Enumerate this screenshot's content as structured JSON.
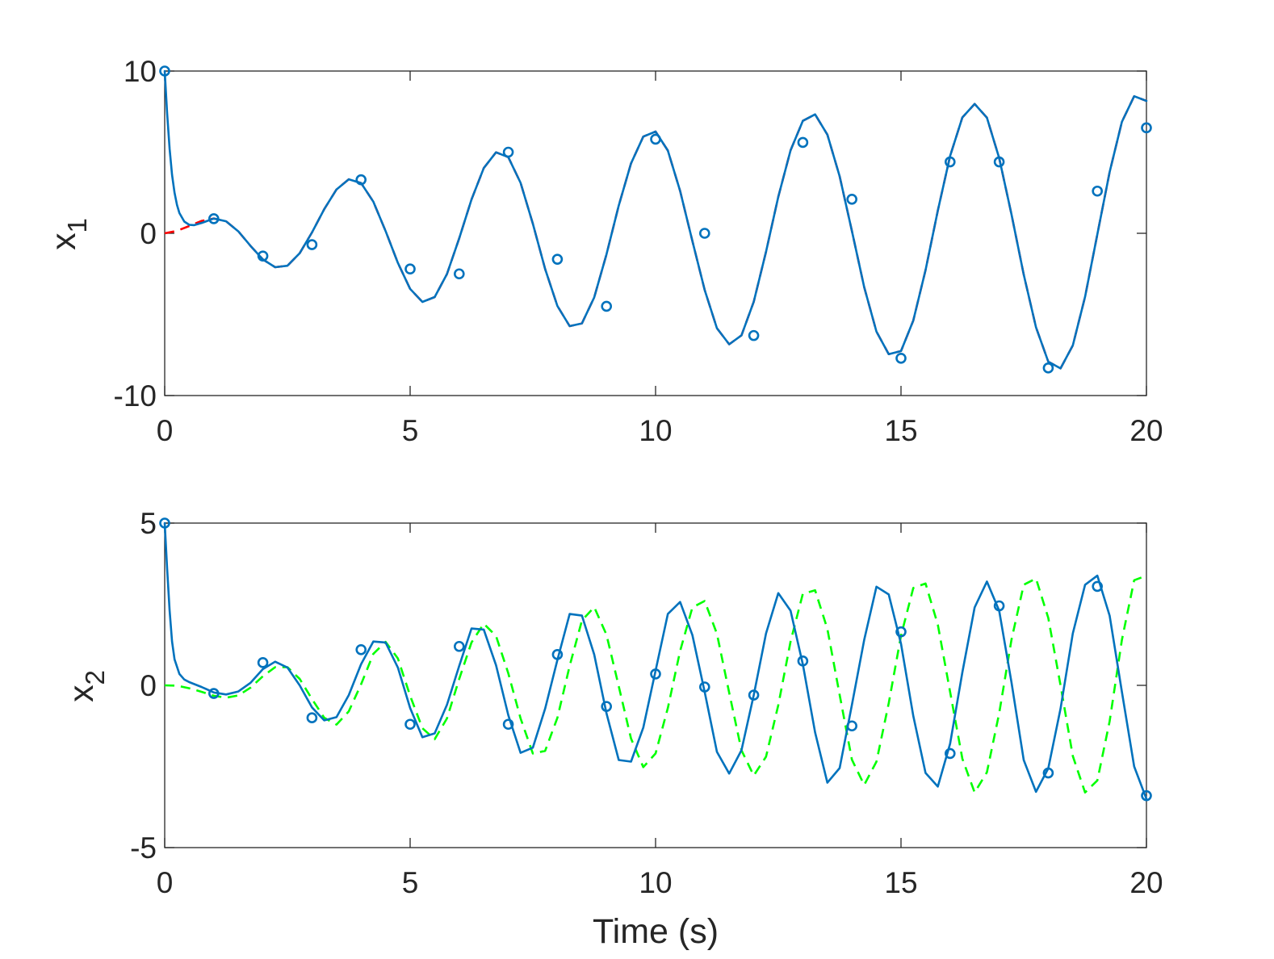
{
  "chart_data": [
    {
      "type": "line",
      "xlabel": "",
      "ylabel": "x",
      "ylabel_subscript": "1",
      "xlim": [
        0,
        20
      ],
      "ylim": [
        -10,
        10
      ],
      "xticks": [
        0,
        5,
        10,
        15,
        20
      ],
      "yticks": [
        -10,
        0,
        10
      ],
      "xtick_labels": [
        "0",
        "5",
        "10",
        "15",
        "20"
      ],
      "ytick_labels": [
        "-10",
        "0",
        "10"
      ],
      "grid": false,
      "colors": {
        "reference": "#ff0000",
        "estimate": "#0072bd",
        "markers": "#0072bd"
      },
      "series": [
        {
          "style": "dashed",
          "color": "#ff0000",
          "x": [
            0,
            0.25,
            0.5,
            0.75,
            1.0,
            1.25,
            1.5,
            1.75,
            2.0,
            2.25,
            2.5,
            2.75,
            3.0,
            3.25,
            3.5,
            3.75,
            4.0,
            4.25,
            4.5,
            4.75,
            5.0,
            5.25,
            5.5,
            5.75,
            6.0,
            6.25,
            6.5,
            6.75,
            7.0,
            7.25,
            7.5,
            7.75,
            8.0,
            8.25,
            8.5,
            8.75,
            9.0,
            9.25,
            9.5,
            9.75,
            10.0,
            10.25,
            10.5,
            10.75,
            11.0,
            11.25,
            11.5,
            11.75,
            12.0,
            12.25,
            12.5,
            12.75,
            13.0,
            13.25,
            13.5,
            13.75,
            14.0,
            14.25,
            14.5,
            14.75,
            15.0,
            15.25,
            15.5,
            15.75,
            16.0,
            16.25,
            16.5,
            16.75,
            17.0,
            17.25,
            17.5,
            17.75,
            18.0,
            18.25,
            18.5,
            18.75,
            19.0,
            19.25,
            19.5,
            19.75,
            20.0
          ],
          "y": [
            0.0,
            0.15,
            0.45,
            0.76,
            0.91,
            0.74,
            0.12,
            -0.78,
            -1.61,
            -2.09,
            -2.0,
            -1.23,
            0.05,
            1.49,
            2.7,
            3.33,
            3.1,
            1.95,
            0.14,
            -1.82,
            -3.43,
            -4.23,
            -3.93,
            -2.51,
            -0.31,
            2.08,
            4.02,
            4.99,
            4.69,
            3.11,
            0.59,
            -2.2,
            -4.48,
            -5.72,
            -5.55,
            -3.95,
            -1.3,
            1.71,
            4.31,
            5.96,
            6.27,
            5.1,
            2.61,
            -0.48,
            -3.49,
            -5.85,
            -6.84,
            -6.29,
            -4.22,
            -1.14,
            2.25,
            5.11,
            6.93,
            7.33,
            6.08,
            3.51,
            0.14,
            -3.32,
            -6.06,
            -7.45,
            -7.26,
            -5.38,
            -2.27,
            1.4,
            4.76,
            7.14,
            7.97,
            7.13,
            4.64,
            1.18,
            -2.54,
            -5.79,
            -7.91,
            -8.33,
            -6.91,
            -3.91,
            -0.06,
            3.77,
            6.87,
            8.45,
            8.16
          ]
        },
        {
          "style": "solid",
          "color": "#0072bd",
          "x": [
            0,
            0.05,
            0.1,
            0.15,
            0.2,
            0.25,
            0.3,
            0.4,
            0.5,
            0.6,
            0.75,
            1.0,
            1.25,
            1.5,
            1.75,
            2.0,
            2.25,
            2.5,
            2.75,
            3.0,
            3.25,
            3.5,
            3.75,
            4.0,
            4.25,
            4.5,
            4.75,
            5.0,
            5.25,
            5.5,
            5.75,
            6.0,
            6.25,
            6.5,
            6.75,
            7.0,
            7.25,
            7.5,
            7.75,
            8.0,
            8.25,
            8.5,
            8.75,
            9.0,
            9.25,
            9.5,
            9.75,
            10.0,
            10.25,
            10.5,
            10.75,
            11.0,
            11.25,
            11.5,
            11.75,
            12.0,
            12.25,
            12.5,
            12.75,
            13.0,
            13.25,
            13.5,
            13.75,
            14.0,
            14.25,
            14.5,
            14.75,
            15.0,
            15.25,
            15.5,
            15.75,
            16.0,
            16.25,
            16.5,
            16.75,
            17.0,
            17.25,
            17.5,
            17.75,
            18.0,
            18.25,
            18.5,
            18.75,
            19.0,
            19.25,
            19.5,
            19.75,
            20.0
          ],
          "y": [
            10.0,
            7.4,
            5.2,
            3.6,
            2.5,
            1.75,
            1.25,
            0.72,
            0.52,
            0.5,
            0.63,
            0.91,
            0.74,
            0.12,
            -0.78,
            -1.61,
            -2.09,
            -2.0,
            -1.23,
            0.05,
            1.49,
            2.7,
            3.33,
            3.1,
            1.95,
            0.14,
            -1.82,
            -3.43,
            -4.23,
            -3.93,
            -2.51,
            -0.31,
            2.08,
            4.02,
            4.99,
            4.69,
            3.11,
            0.59,
            -2.2,
            -4.48,
            -5.72,
            -5.55,
            -3.95,
            -1.3,
            1.71,
            4.31,
            5.96,
            6.27,
            5.1,
            2.61,
            -0.48,
            -3.49,
            -5.85,
            -6.84,
            -6.29,
            -4.22,
            -1.14,
            2.25,
            5.11,
            6.93,
            7.33,
            6.08,
            3.51,
            0.14,
            -3.32,
            -6.06,
            -7.45,
            -7.26,
            -5.38,
            -2.27,
            1.4,
            4.76,
            7.14,
            7.97,
            7.13,
            4.64,
            1.18,
            -2.54,
            -5.79,
            -7.91,
            -8.33,
            -6.91,
            -3.91,
            -0.06,
            3.77,
            6.87,
            8.45,
            8.16
          ]
        },
        {
          "style": "markers",
          "marker": "circle",
          "color": "#0072bd",
          "x": [
            0,
            1,
            2,
            3,
            4,
            5,
            6,
            7,
            8,
            9,
            10,
            11,
            12,
            13,
            14,
            15,
            16,
            17,
            18,
            19,
            20
          ],
          "y": [
            10.0,
            0.9,
            -1.4,
            -0.7,
            3.3,
            -2.2,
            -2.5,
            5.0,
            -1.6,
            -4.5,
            5.8,
            0.0,
            -6.3,
            5.6,
            2.1,
            -7.7,
            4.4,
            4.4,
            -8.3,
            2.6,
            6.5
          ]
        }
      ]
    },
    {
      "type": "line",
      "xlabel": "Time (s)",
      "ylabel": "x",
      "ylabel_subscript": "2",
      "xlim": [
        0,
        20
      ],
      "ylim": [
        -5,
        5
      ],
      "xticks": [
        0,
        5,
        10,
        15,
        20
      ],
      "yticks": [
        -5,
        0,
        5
      ],
      "xtick_labels": [
        "0",
        "5",
        "10",
        "15",
        "20"
      ],
      "ytick_labels": [
        "-5",
        "0",
        "5"
      ],
      "grid": false,
      "colors": {
        "reference": "#00ff00",
        "estimate": "#0072bd",
        "markers": "#0072bd"
      },
      "series": [
        {
          "style": "dashed",
          "color": "#00ff00",
          "x": [
            0,
            0.25,
            0.5,
            0.75,
            1.0,
            1.25,
            1.5,
            1.75,
            2.0,
            2.25,
            2.5,
            2.75,
            3.0,
            3.25,
            3.5,
            3.75,
            4.0,
            4.25,
            4.5,
            4.75,
            5.0,
            5.25,
            5.5,
            5.75,
            6.0,
            6.25,
            6.5,
            6.75,
            7.0,
            7.25,
            7.5,
            7.75,
            8.0,
            8.25,
            8.5,
            8.75,
            9.0,
            9.25,
            9.5,
            9.75,
            10.0,
            10.25,
            10.5,
            10.75,
            11.0,
            11.25,
            11.5,
            11.75,
            12.0,
            12.25,
            12.5,
            12.75,
            13.0,
            13.25,
            13.5,
            13.75,
            14.0,
            14.25,
            14.5,
            14.75,
            15.0,
            15.25,
            15.5,
            15.75,
            16.0,
            16.25,
            16.5,
            16.75,
            17.0,
            17.25,
            17.5,
            17.75,
            18.0,
            18.25,
            18.5,
            18.75,
            19.0,
            19.25,
            19.5,
            19.75,
            20.0
          ],
          "y": [
            0.0,
            -0.01,
            -0.09,
            -0.2,
            -0.32,
            -0.38,
            -0.31,
            -0.07,
            0.28,
            0.56,
            0.56,
            0.2,
            -0.42,
            -1.0,
            -1.21,
            -0.8,
            0.03,
            0.97,
            1.34,
            0.83,
            -0.32,
            -1.32,
            -1.66,
            -1.02,
            0.2,
            1.32,
            1.9,
            1.52,
            0.37,
            -1.02,
            -2.1,
            -2.02,
            -1.0,
            0.6,
            2.0,
            2.41,
            1.56,
            -0.03,
            -1.64,
            -2.52,
            -2.1,
            -0.7,
            1.06,
            2.4,
            2.6,
            1.59,
            -0.23,
            -2.0,
            -2.78,
            -2.2,
            -0.61,
            1.35,
            2.82,
            2.93,
            1.74,
            -0.29,
            -2.29,
            -3.07,
            -2.35,
            -0.55,
            1.53,
            3.0,
            3.14,
            1.87,
            -0.2,
            -2.26,
            -3.3,
            -2.68,
            -0.86,
            1.4,
            3.1,
            3.29,
            2.08,
            0.0,
            -2.18,
            -3.3,
            -2.93,
            -1.11,
            1.4,
            3.24,
            3.38
          ]
        },
        {
          "style": "solid",
          "color": "#0072bd",
          "x": [
            0,
            0.05,
            0.1,
            0.15,
            0.2,
            0.3,
            0.4,
            0.5,
            0.75,
            1.0,
            1.25,
            1.5,
            1.75,
            2.0,
            2.25,
            2.5,
            2.75,
            3.0,
            3.25,
            3.5,
            3.75,
            4.0,
            4.25,
            4.5,
            4.75,
            5.0,
            5.25,
            5.5,
            5.75,
            6.0,
            6.25,
            6.5,
            6.75,
            7.0,
            7.25,
            7.5,
            7.75,
            8.0,
            8.25,
            8.5,
            8.75,
            9.0,
            9.25,
            9.5,
            9.75,
            10.0,
            10.25,
            10.5,
            10.75,
            11.0,
            11.25,
            11.5,
            11.75,
            12.0,
            12.25,
            12.5,
            12.75,
            13.0,
            13.25,
            13.5,
            13.75,
            14.0,
            14.25,
            14.5,
            14.75,
            15.0,
            15.25,
            15.5,
            15.75,
            16.0,
            16.25,
            16.5,
            16.75,
            17.0,
            17.25,
            17.5,
            17.75,
            18.0,
            18.25,
            18.5,
            18.75,
            19.0,
            19.25,
            19.5,
            19.75,
            20.0
          ],
          "y": [
            5.0,
            3.6,
            2.3,
            1.35,
            0.8,
            0.35,
            0.18,
            0.1,
            -0.05,
            -0.22,
            -0.28,
            -0.19,
            0.08,
            0.5,
            0.73,
            0.55,
            0.0,
            -0.68,
            -1.08,
            -0.98,
            -0.3,
            0.65,
            1.35,
            1.32,
            0.55,
            -0.7,
            -1.6,
            -1.48,
            -0.6,
            0.6,
            1.75,
            1.72,
            0.62,
            -0.92,
            -2.08,
            -1.92,
            -0.72,
            0.78,
            2.2,
            2.15,
            0.95,
            -0.86,
            -2.3,
            -2.35,
            -1.3,
            0.45,
            2.2,
            2.57,
            1.55,
            -0.2,
            -2.05,
            -2.72,
            -2.0,
            -0.3,
            1.6,
            2.84,
            2.3,
            0.65,
            -1.45,
            -3.0,
            -2.55,
            -0.6,
            1.4,
            3.04,
            2.8,
            1.28,
            -0.94,
            -2.7,
            -3.12,
            -1.8,
            0.4,
            2.4,
            3.2,
            2.3,
            0.1,
            -2.3,
            -3.28,
            -2.56,
            -0.72,
            1.6,
            3.1,
            3.38,
            2.15,
            -0.2,
            -2.5,
            -3.5
          ]
        },
        {
          "style": "markers",
          "marker": "circle",
          "color": "#0072bd",
          "x": [
            0,
            1,
            2,
            3,
            4,
            5,
            6,
            7,
            8,
            9,
            10,
            11,
            12,
            13,
            14,
            15,
            16,
            17,
            18,
            19,
            20
          ],
          "y": [
            5.0,
            -0.25,
            0.7,
            -1.0,
            1.1,
            -1.2,
            1.2,
            -1.2,
            0.95,
            -0.65,
            0.35,
            -0.05,
            -0.3,
            0.75,
            -1.25,
            1.65,
            -2.1,
            2.45,
            -2.7,
            3.05,
            -3.4
          ]
        }
      ]
    }
  ]
}
